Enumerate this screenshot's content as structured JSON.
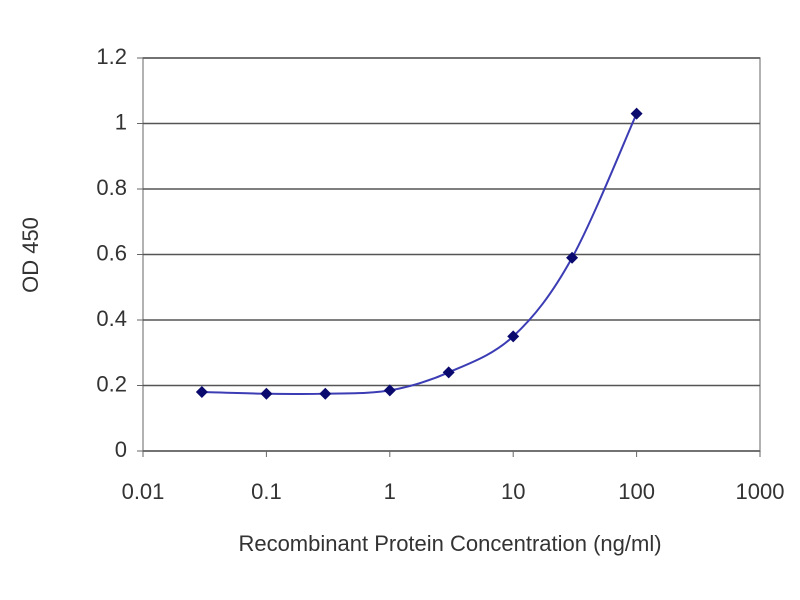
{
  "chart_data": {
    "type": "line",
    "xlabel": "Recombinant Protein Concentration (ng/ml)",
    "ylabel": "OD 450",
    "x": [
      0.03,
      0.1,
      0.3,
      1,
      3,
      10,
      30,
      100
    ],
    "values": [
      0.18,
      0.175,
      0.175,
      0.185,
      0.24,
      0.35,
      0.59,
      1.03
    ],
    "color": "#3c3cb4",
    "marker_color": "#0a0a6e",
    "xscale": "log",
    "xlim": [
      0.01,
      1000
    ],
    "xticks": [
      0.01,
      0.1,
      1,
      10,
      100,
      1000
    ],
    "ylim": [
      0,
      1.2
    ],
    "yticks": [
      0,
      0.2,
      0.4,
      0.6,
      0.8,
      1,
      1.2
    ],
    "grid": true
  }
}
